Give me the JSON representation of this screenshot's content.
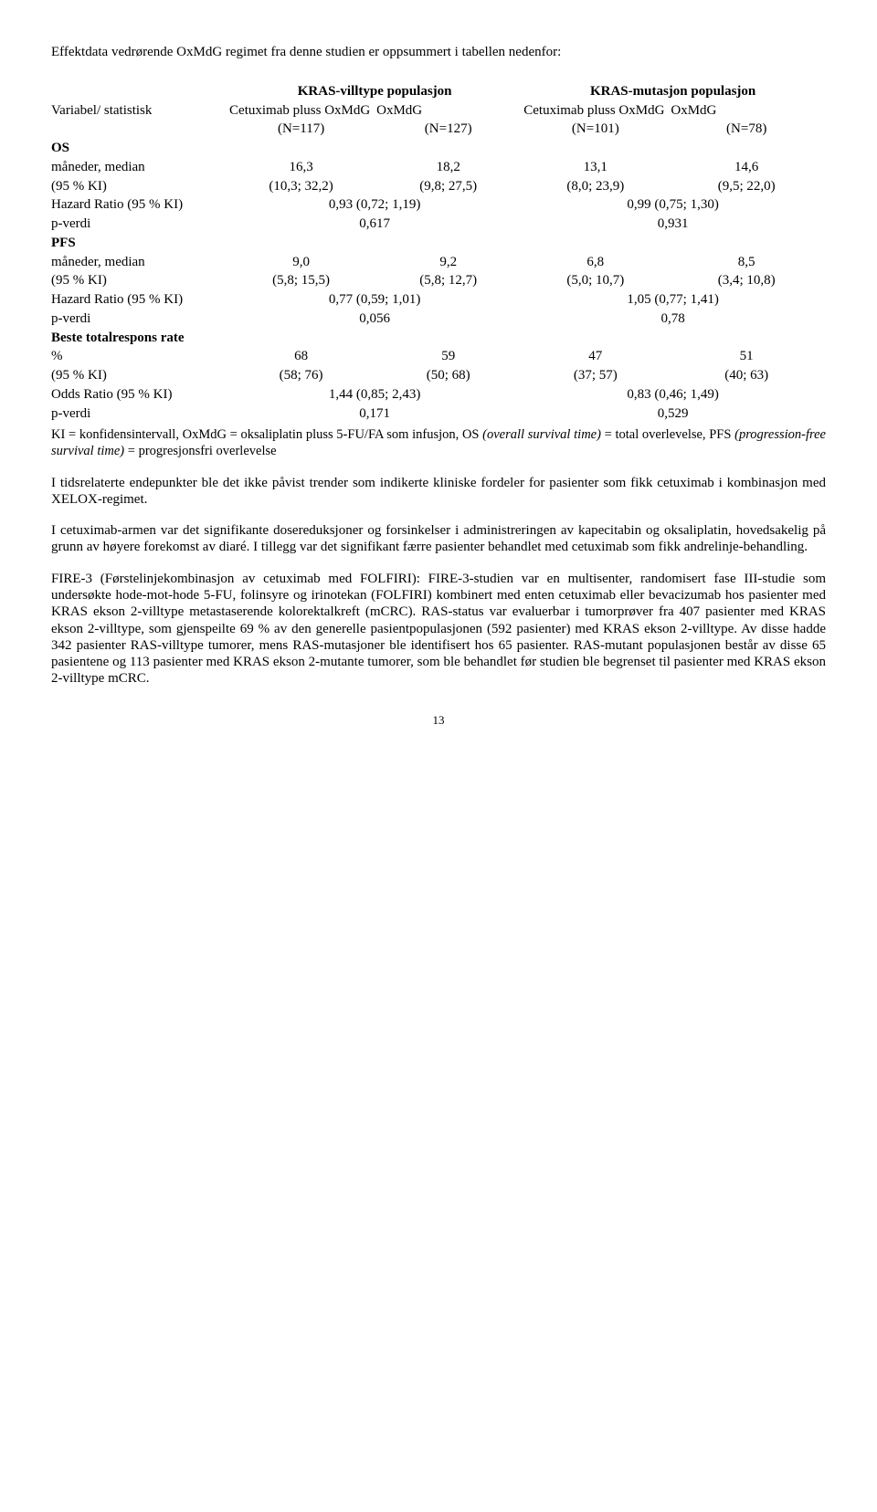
{
  "intro": "Effektdata vedrørende OxMdG regimet fra denne studien er oppsummert i tabellen nedenfor:",
  "table": {
    "pop1": "KRAS-villtype populasjon",
    "pop2": "KRAS-mutasjon populasjon",
    "varstat": "Variabel/ statistisk",
    "arm_cet": "Cetuximab pluss OxMdG",
    "arm_ox": "OxMdG",
    "n": {
      "a": "(N=117)",
      "b": "(N=127)",
      "c": "(N=101)",
      "d": "(N=78)"
    },
    "os_label": "OS",
    "row_mm": {
      "label": "måneder, median",
      "a": "16,3",
      "b": "18,2",
      "c": "13,1",
      "d": "14,6"
    },
    "os_ci": {
      "label": "(95 % KI)",
      "a": "(10,3; 32,2)",
      "b": "(9,8; 27,5)",
      "c": "(8,0; 23,9)",
      "d": "(9,5; 22,0)"
    },
    "os_hr": {
      "label": "Hazard Ratio (95 % KI)",
      "left": "0,93 (0,72; 1,19)",
      "right": "0,99 (0,75; 1,30)"
    },
    "os_p": {
      "label": "p-verdi",
      "left": "0,617",
      "right": "0,931"
    },
    "pfs_label": "PFS",
    "pfs_mm": {
      "label": "måneder, median",
      "a": "9,0",
      "b": "9,2",
      "c": "6,8",
      "d": "8,5"
    },
    "pfs_ci": {
      "label": "(95 % KI)",
      "a": "(5,8; 15,5)",
      "b": "(5,8; 12,7)",
      "c": "(5,0; 10,7)",
      "d": "(3,4; 10,8)"
    },
    "pfs_hr": {
      "label": "Hazard Ratio (95 % KI)",
      "left": "0,77 (0,59; 1,01)",
      "right": "1,05 (0,77; 1,41)"
    },
    "pfs_p": {
      "label": "p-verdi",
      "left": "0,056",
      "right": "0,78"
    },
    "brr_label": "Beste totalrespons rate",
    "brr_pct": {
      "label": "%",
      "a": "68",
      "b": "59",
      "c": "47",
      "d": "51"
    },
    "brr_ci": {
      "label": "(95 % KI)",
      "a": "(58; 76)",
      "b": "(50; 68)",
      "c": "(37; 57)",
      "d": "(40; 63)"
    },
    "brr_or": {
      "label": "Odds Ratio (95 % KI)",
      "left": "1,44 (0,85; 2,43)",
      "right": "0,83 (0,46; 1,49)"
    },
    "brr_p": {
      "label": "p-verdi",
      "left": "0,171",
      "right": "0,529"
    }
  },
  "footnote": {
    "pre": "KI = konfidensintervall, OxMdG = oksaliplatin pluss 5-FU/FA som infusjon, OS ",
    "ital1": "(overall survival time)",
    "mid": " = total overlevelse, PFS ",
    "ital2": "(progression-free survival time)",
    "post": " = progresjonsfri overlevelse"
  },
  "para1": "I tidsrelaterte endepunkter ble det ikke påvist trender som indikerte kliniske fordeler for pasienter som fikk cetuximab i kombinasjon med XELOX-regimet.",
  "para2": "I cetuximab-armen var det signifikante dosereduksjoner og forsinkelser i administreringen av kapecitabin og oksaliplatin, hovedsakelig på grunn av høyere forekomst av diaré. I tillegg var det signifikant færre pasienter behandlet med cetuximab som fikk andrelinje-behandling.",
  "para3": "FIRE-3 (Førstelinjekombinasjon av cetuximab med FOLFIRI): FIRE-3-studien var en multisenter, randomisert fase III-studie som undersøkte hode-mot-hode 5-FU, folinsyre og irinotekan (FOLFIRI) kombinert med enten cetuximab eller bevacizumab hos pasienter med KRAS ekson 2-villtype metastaserende kolorektalkreft (mCRC). RAS-status var evaluerbar i tumorprøver fra 407 pasienter med KRAS ekson 2-villtype, som gjenspeilte 69 % av den generelle pasientpopulasjonen (592 pasienter) med KRAS ekson 2-villtype. Av disse hadde 342 pasienter RAS-villtype tumorer, mens RAS-mutasjoner ble identifisert hos 65 pasienter. RAS-mutant populasjonen består av disse 65 pasientene og 113 pasienter med KRAS ekson 2-mutante tumorer, som ble behandlet før studien ble begrenset til pasienter med KRAS ekson 2-villtype mCRC.",
  "page_number": "13"
}
